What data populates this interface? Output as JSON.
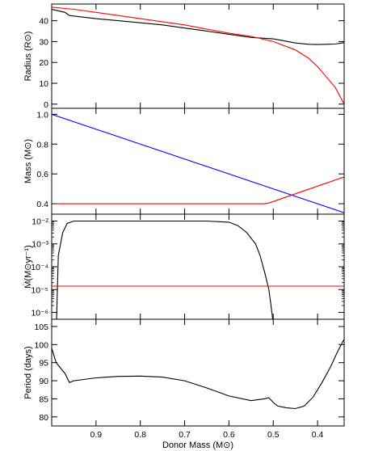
{
  "chart_data": [
    {
      "type": "line",
      "ylabel": "Radius (R⊙)",
      "xlim": [
        1.0,
        0.34
      ],
      "ylim": [
        -2,
        48
      ],
      "yticks": [
        0,
        10,
        20,
        30,
        40
      ],
      "series": [
        {
          "color": "#000000",
          "x": [
            1.0,
            0.97,
            0.96,
            0.9,
            0.85,
            0.8,
            0.75,
            0.7,
            0.65,
            0.6,
            0.55,
            0.5,
            0.48,
            0.45,
            0.42,
            0.4,
            0.38,
            0.36,
            0.34
          ],
          "y": [
            45.5,
            44.0,
            42.5,
            41.0,
            40.0,
            39.0,
            38.0,
            36.5,
            35.0,
            33.5,
            32.0,
            31.3,
            30.5,
            29.3,
            28.7,
            28.6,
            28.7,
            28.8,
            29.5
          ]
        },
        {
          "color": "#ff0000",
          "x": [
            1.0,
            0.95,
            0.9,
            0.85,
            0.8,
            0.75,
            0.7,
            0.65,
            0.6,
            0.55,
            0.5,
            0.45,
            0.42,
            0.4,
            0.38,
            0.36,
            0.35,
            0.34
          ],
          "y": [
            46.5,
            45.5,
            44.0,
            42.5,
            41.0,
            39.5,
            38.0,
            36.0,
            34.0,
            32.5,
            30.0,
            26.0,
            22.0,
            18.0,
            13.0,
            8.0,
            4.0,
            0
          ]
        }
      ]
    },
    {
      "type": "line",
      "ylabel": "Mass (M⊙)",
      "xlim": [
        1.0,
        0.34
      ],
      "ylim": [
        0.33,
        1.04
      ],
      "yticks": [
        0.4,
        0.6,
        0.8,
        1.0
      ],
      "series": [
        {
          "color": "#0000ff",
          "x": [
            1.0,
            0.34
          ],
          "y": [
            1.0,
            0.34
          ]
        },
        {
          "color": "#ff0000",
          "x": [
            0.99,
            0.7,
            0.52,
            0.51,
            0.5,
            0.34
          ],
          "y": [
            0.4,
            0.4,
            0.4,
            0.405,
            0.415,
            0.58
          ]
        }
      ]
    },
    {
      "type": "line",
      "ylabel": "Ṁ(M⊙yr⁻¹)",
      "yscale": "log",
      "xlim": [
        1.0,
        0.34
      ],
      "ylim": [
        -6.3,
        -1.7
      ],
      "yticks": [
        "10⁻²",
        "10⁻³",
        "10⁻⁴",
        "10⁻⁵",
        "10⁻⁶"
      ],
      "series": [
        {
          "color": "#000000",
          "x": [
            0.99,
            0.985,
            0.975,
            0.965,
            0.95,
            0.9,
            0.8,
            0.7,
            0.65,
            0.6,
            0.58,
            0.56,
            0.54,
            0.53,
            0.52,
            0.51,
            0.505,
            0.5
          ],
          "y": [
            -7.0,
            -3.5,
            -2.5,
            -2.1,
            -2.0,
            -2.0,
            -2.0,
            -2.0,
            -2.0,
            -2.05,
            -2.2,
            -2.5,
            -3.0,
            -3.5,
            -4.2,
            -5.0,
            -5.7,
            -6.5
          ]
        },
        {
          "color": "#ff0000",
          "x": [
            1.0,
            0.34
          ],
          "y": [
            -4.85,
            -4.85
          ]
        }
      ]
    },
    {
      "type": "line",
      "xlabel": "Donor Mass (M⊙)",
      "ylabel": "Period (days)",
      "xlim": [
        1.0,
        0.34
      ],
      "ylim": [
        77.5,
        107
      ],
      "yticks": [
        80,
        85,
        90,
        95,
        100,
        105
      ],
      "xticks": [
        0.9,
        0.8,
        0.7,
        0.6,
        0.5,
        0.4
      ],
      "series": [
        {
          "color": "#000000",
          "x": [
            1.0,
            0.99,
            0.97,
            0.96,
            0.95,
            0.9,
            0.85,
            0.8,
            0.75,
            0.7,
            0.65,
            0.6,
            0.55,
            0.52,
            0.51,
            0.5,
            0.49,
            0.47,
            0.45,
            0.43,
            0.41,
            0.39,
            0.37,
            0.355,
            0.34
          ],
          "y": [
            99.0,
            95.0,
            92.0,
            89.5,
            90.0,
            90.8,
            91.2,
            91.3,
            91.0,
            90.0,
            88.0,
            85.8,
            84.5,
            85.0,
            85.3,
            84.0,
            83.0,
            82.5,
            82.3,
            83.0,
            85.5,
            89.5,
            94.0,
            98.0,
            101.5
          ]
        }
      ]
    }
  ]
}
